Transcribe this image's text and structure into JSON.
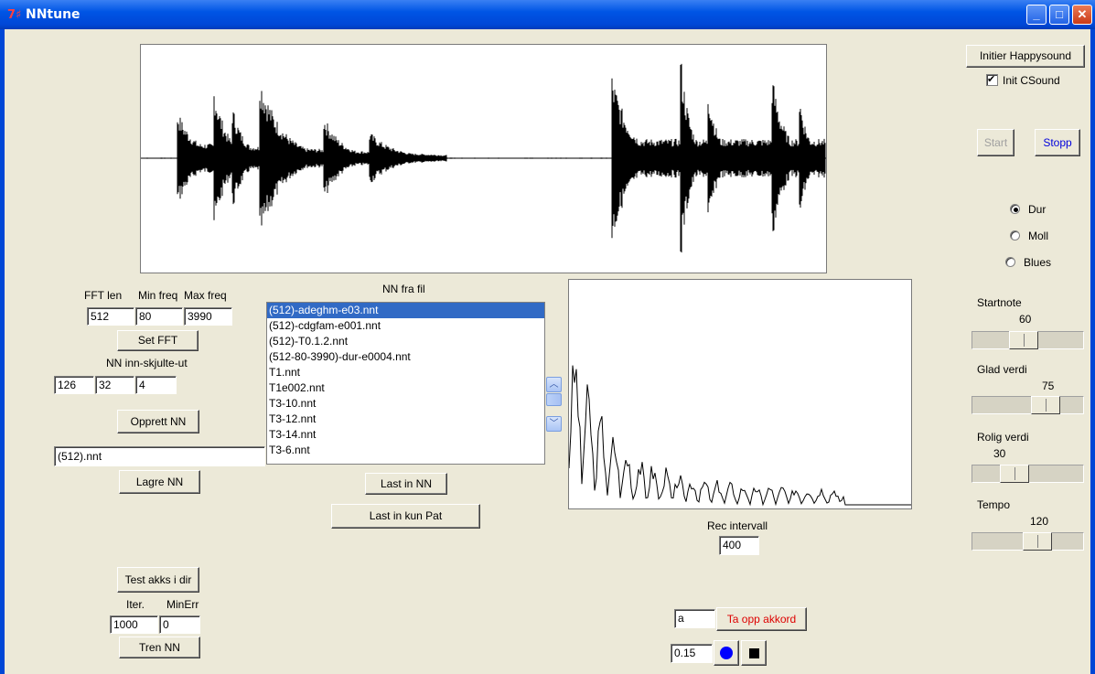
{
  "window": {
    "title": "NNtune",
    "icon_glyph": "7♯",
    "minimize_glyph": "_",
    "maximize_glyph": "□",
    "close_glyph": "✕"
  },
  "fft": {
    "header_fftlen": "FFT len",
    "header_minfreq": "Min freq",
    "header_maxfreq": "Max freq",
    "fft_len": "512",
    "min_freq": "80",
    "max_freq": "3990",
    "set_fft_label": "Set FFT"
  },
  "nn": {
    "layers_label": "NN inn-skjulte-ut",
    "input": "126",
    "hidden": "32",
    "output": "4",
    "create_label": "Opprett NN",
    "filename": "(512).nnt",
    "save_label": "Lagre NN"
  },
  "file_list": {
    "label": "NN fra fil",
    "items": [
      "(512)-adeghm-e03.nnt",
      "(512)-cdgfam-e001.nnt",
      "(512)-T0.1.2.nnt",
      "(512-80-3990)-dur-e0004.nnt",
      "T1.nnt",
      "T1e002.nnt",
      "T3-10.nnt",
      "T3-12.nnt",
      "T3-14.nnt",
      "T3-6.nnt"
    ],
    "selected_index": 0,
    "scroll_up_glyph": "︿",
    "scroll_down_glyph": "﹀",
    "load_label": "Last in NN",
    "load_pat_label": "Last in kun Pat"
  },
  "training": {
    "test_label": "Test akks i dir",
    "iter_label": "Iter.",
    "minerr_label": "MinErr",
    "iter_value": "1000",
    "minerr_value": "0",
    "train_label": "Tren NN"
  },
  "record": {
    "interval_label": "Rec intervall",
    "interval_value": "400",
    "chord_value": "a",
    "record_chord_label": "Ta opp akkord",
    "threshold_value": "0.15"
  },
  "right_panel": {
    "init_label": "Initier Happysound",
    "init_csound_label": "Init CSound",
    "init_csound_checked": true,
    "check_glyph": "✔",
    "start_label": "Start",
    "stop_label": "Stopp",
    "mode_options": [
      "Dur",
      "Moll",
      "Blues"
    ],
    "mode_selected": "Dur",
    "startnote_label": "Startnote",
    "startnote_value": "60",
    "glad_label": "Glad verdi",
    "glad_value": "75",
    "rolig_label": "Rolig verdi",
    "rolig_value": "30",
    "tempo_label": "Tempo",
    "tempo_value": "120"
  },
  "colors": {
    "titlebar": "#0055e5",
    "selection": "#316ac5",
    "record_dot": "#0000ff",
    "stop_square": "#000000",
    "red_text": "#dd0000",
    "blue_text": "#0000dd"
  }
}
